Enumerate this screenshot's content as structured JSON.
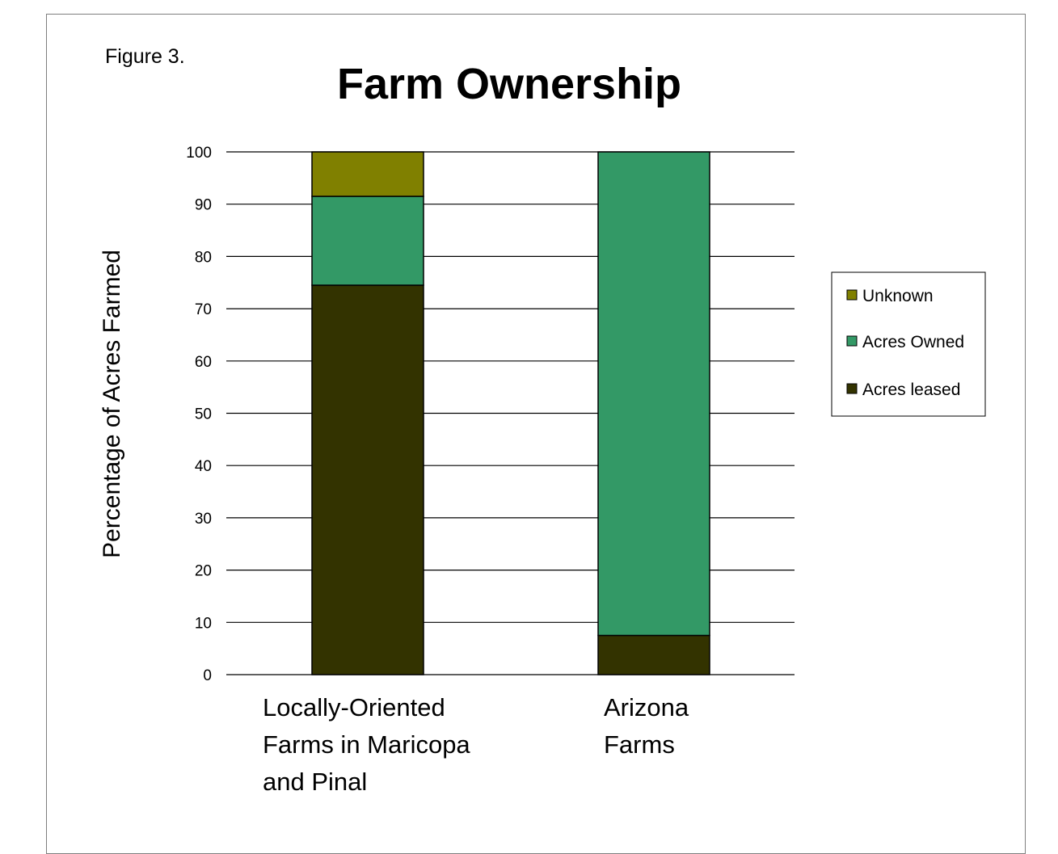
{
  "figure_label": "Figure 3.",
  "chart_data": {
    "type": "bar",
    "stacked": true,
    "title": "Farm Ownership",
    "xlabel": "",
    "ylabel": "Percentage of Acres Farmed",
    "ylim": [
      0,
      100
    ],
    "yticks": [
      0,
      10,
      20,
      30,
      40,
      50,
      60,
      70,
      80,
      90,
      100
    ],
    "grid": true,
    "legend_position": "right",
    "categories": [
      [
        "Locally-Oriented",
        "Farms in Maricopa",
        "and Pinal"
      ],
      [
        "Arizona",
        "Farms"
      ]
    ],
    "series": [
      {
        "name": "Acres leased",
        "values": [
          74.5,
          7.5
        ],
        "color": "#333300"
      },
      {
        "name": "Acres Owned",
        "values": [
          17,
          92.5
        ],
        "color": "#339966"
      },
      {
        "name": "Unknown",
        "values": [
          8.5,
          0
        ],
        "color": "#808000"
      }
    ],
    "legend_order": [
      "Unknown",
      "Acres Owned",
      "Acres leased"
    ]
  }
}
